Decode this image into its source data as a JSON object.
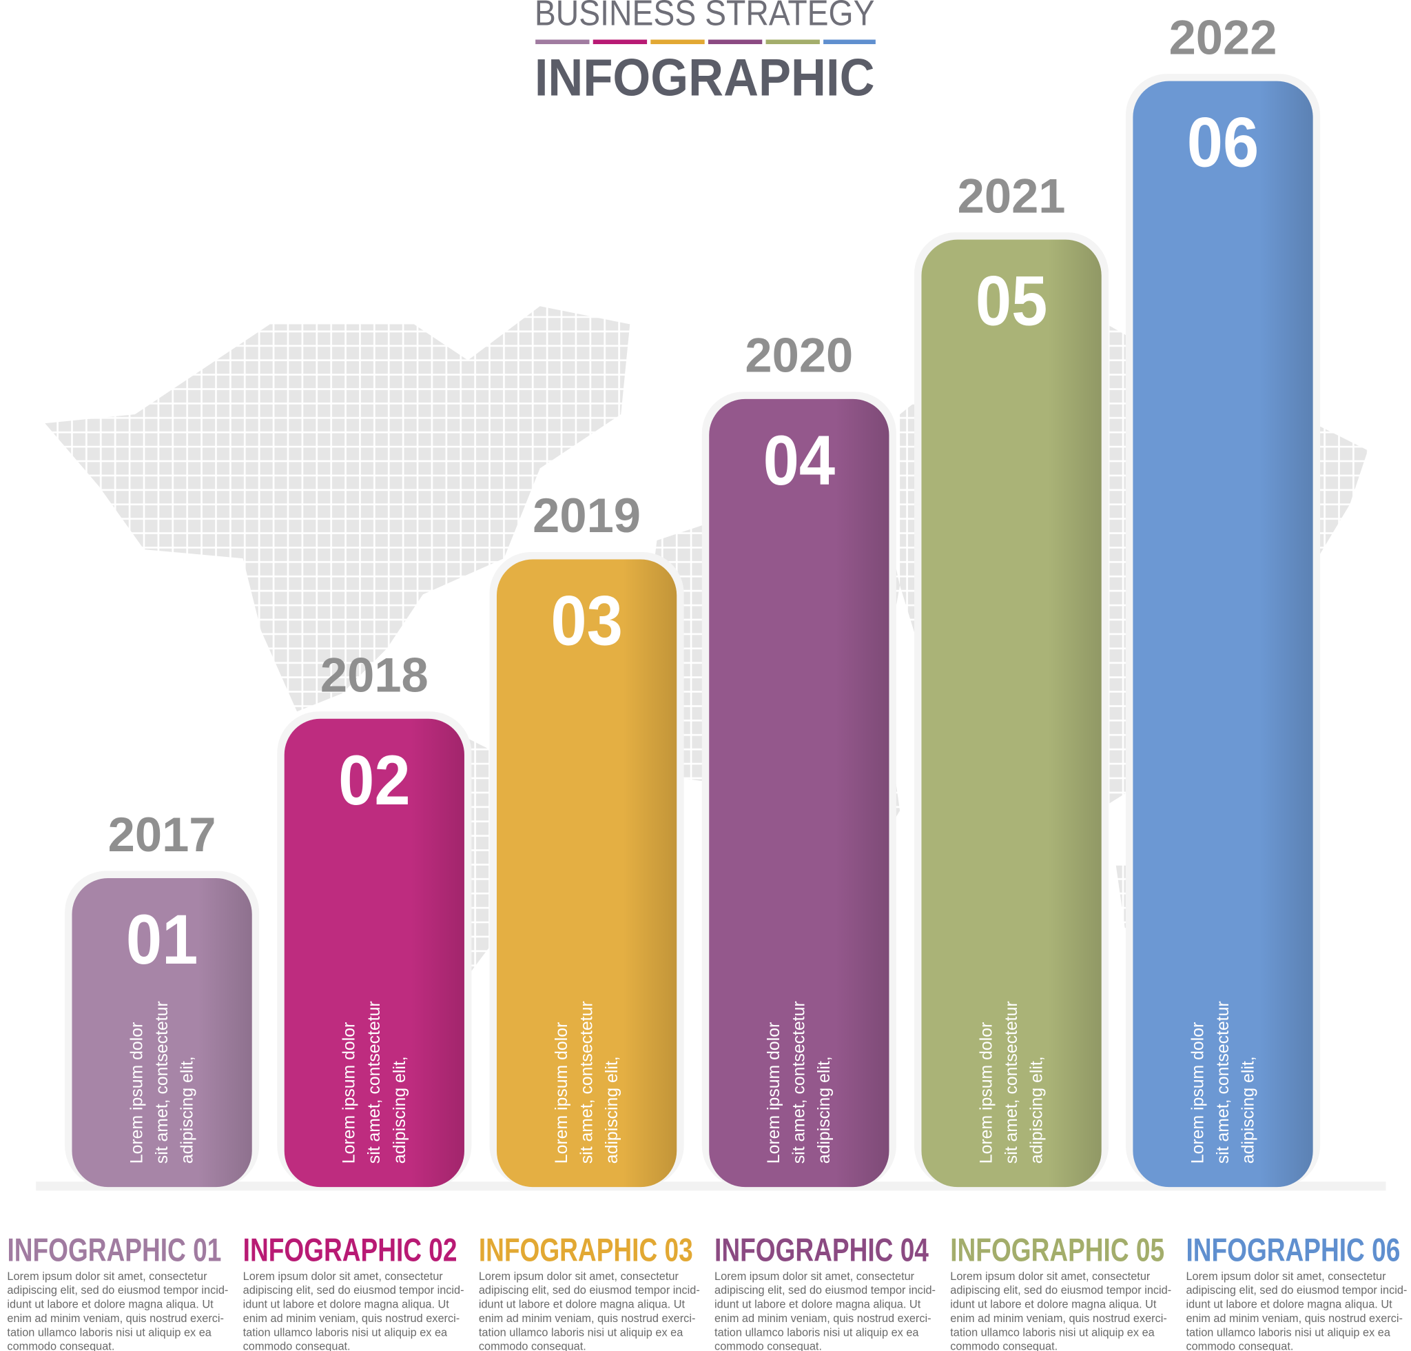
{
  "header": {
    "title": "BUSINESS STRATEGY",
    "subtitle": "INFOGRAPHIC"
  },
  "items": [
    {
      "year": "2017",
      "number": "01",
      "bar_text": [
        "Lorem ipsum dolor",
        "sit amet, contsectetur",
        "adipiscing elit,"
      ],
      "heading": "INFOGRAPHIC 01",
      "body": [
        "Lorem ipsum dolor sit amet, consectetur",
        "adipiscing elit, sed do eiusmod tempor incid-",
        "idunt ut labore et dolore magna aliqua. Ut",
        "enim ad minim veniam, quis nostrud exerci-",
        "tation ullamco laboris nisi ut aliquip ex ea",
        "commodo consequat."
      ]
    },
    {
      "year": "2018",
      "number": "02",
      "bar_text": [
        "Lorem ipsum dolor",
        "sit amet, contsectetur",
        "adipiscing elit,"
      ],
      "heading": "INFOGRAPHIC 02",
      "body": [
        "Lorem ipsum dolor sit amet, consectetur",
        "adipiscing elit, sed do eiusmod tempor incid-",
        "idunt ut labore et dolore magna aliqua. Ut",
        "enim ad minim veniam, quis nostrud exerci-",
        "tation ullamco laboris nisi ut aliquip ex ea",
        "commodo consequat."
      ]
    },
    {
      "year": "2019",
      "number": "03",
      "bar_text": [
        "Lorem ipsum dolor",
        "sit amet, contsectetur",
        "adipiscing elit,"
      ],
      "heading": "INFOGRAPHIC 03",
      "body": [
        "Lorem ipsum dolor sit amet, consectetur",
        "adipiscing elit, sed do eiusmod tempor incid-",
        "idunt ut labore et dolore magna aliqua. Ut",
        "enim ad minim veniam, quis nostrud exerci-",
        "tation ullamco laboris nisi ut aliquip ex ea",
        "commodo consequat."
      ]
    },
    {
      "year": "2020",
      "number": "04",
      "bar_text": [
        "Lorem ipsum dolor",
        "sit amet, contsectetur",
        "adipiscing elit,"
      ],
      "heading": "INFOGRAPHIC 04",
      "body": [
        "Lorem ipsum dolor sit amet, consectetur",
        "adipiscing elit, sed do eiusmod tempor incid-",
        "idunt ut labore et dolore magna aliqua. Ut",
        "enim ad minim veniam, quis nostrud exerci-",
        "tation ullamco laboris nisi ut aliquip ex ea",
        "commodo consequat."
      ]
    },
    {
      "year": "2021",
      "number": "05",
      "bar_text": [
        "Lorem ipsum dolor",
        "sit amet, contsectetur",
        "adipiscing elit,"
      ],
      "heading": "INFOGRAPHIC 05",
      "body": [
        "Lorem ipsum dolor sit amet, consectetur",
        "adipiscing elit, sed do eiusmod tempor incid-",
        "idunt ut labore et dolore magna aliqua. Ut",
        "enim ad minim veniam, quis nostrud exerci-",
        "tation ullamco laboris nisi ut aliquip ex ea",
        "commodo consequat."
      ]
    },
    {
      "year": "2022",
      "number": "06",
      "bar_text": [
        "Lorem ipsum dolor",
        "sit amet, contsectetur",
        "adipiscing elit,"
      ],
      "heading": "INFOGRAPHIC 06",
      "body": [
        "Lorem ipsum dolor sit amet, consectetur",
        "adipiscing elit, sed do eiusmod tempor incid-",
        "idunt ut labore et dolore magna aliqua. Ut",
        "enim ad minim veniam, quis nostrud exerci-",
        "tation ullamco laboris nisi ut aliquip ex ea",
        "commodo consequat."
      ]
    }
  ]
}
